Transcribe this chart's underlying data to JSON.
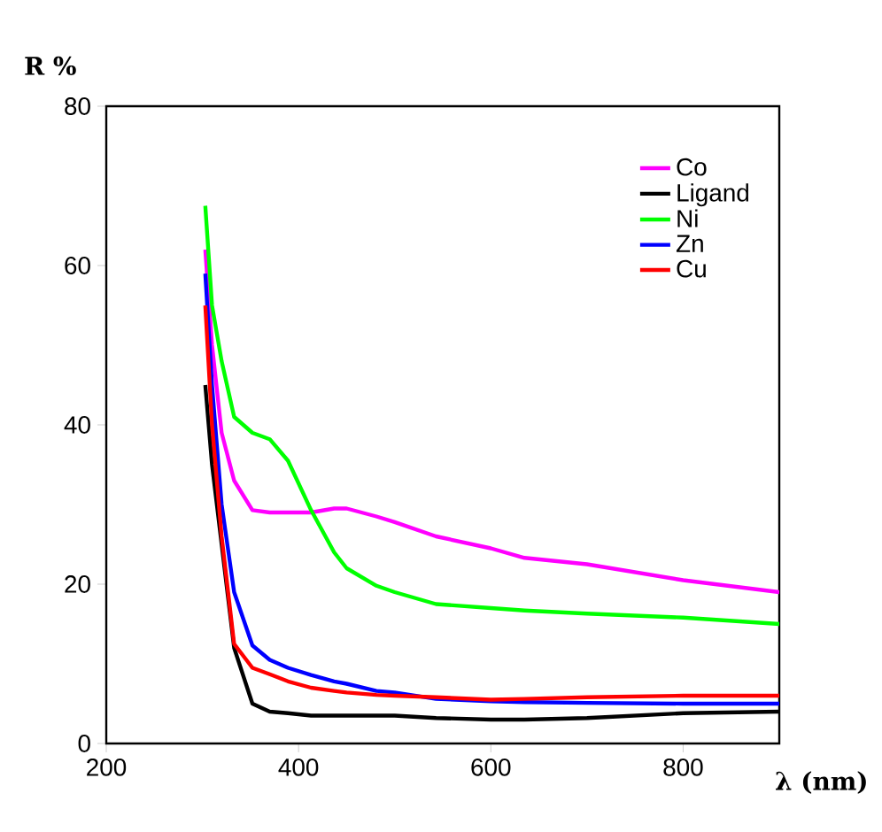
{
  "chart_data": {
    "type": "line",
    "xlabel": "λ (nm)",
    "ylabel": "R %",
    "xlim": [
      200,
      900
    ],
    "ylim": [
      0,
      80
    ],
    "xticks": [
      200,
      400,
      600,
      800
    ],
    "yticks": [
      0,
      20,
      40,
      60,
      80
    ],
    "legend": "top right",
    "grid": false,
    "x": [
      303,
      310,
      320,
      333,
      352,
      370,
      389,
      413,
      437,
      450,
      481,
      500,
      543,
      600,
      635,
      700,
      800,
      900
    ],
    "series": [
      {
        "name": "Co",
        "color": "#ff00ff",
        "values": [
          62,
          50,
          39,
          33,
          29.3,
          29,
          29,
          29,
          29.5,
          29.5,
          28.5,
          27.8,
          26,
          24.5,
          23.3,
          22.5,
          20.5,
          19
        ]
      },
      {
        "name": "Ligand",
        "color": "#000000",
        "values": [
          45,
          35,
          25,
          12,
          5,
          4,
          3.8,
          3.5,
          3.5,
          3.5,
          3.5,
          3.5,
          3.2,
          3,
          3,
          3.2,
          3.8,
          4
        ]
      },
      {
        "name": "Ni",
        "color": "#00ff00",
        "values": [
          67.5,
          55,
          48,
          41,
          39,
          38.2,
          35.5,
          29.3,
          24,
          22,
          19.8,
          19,
          17.5,
          17,
          16.7,
          16.3,
          15.8,
          15
        ]
      },
      {
        "name": "Zn",
        "color": "#0000ff",
        "values": [
          59,
          45,
          30,
          19,
          12.3,
          10.5,
          9.5,
          8.6,
          7.8,
          7.5,
          6.6,
          6.4,
          5.6,
          5.3,
          5.2,
          5.1,
          5,
          5
        ]
      },
      {
        "name": "Cu",
        "color": "#ff0000",
        "values": [
          55,
          40,
          26,
          12.5,
          9.5,
          8.7,
          7.8,
          7,
          6.6,
          6.4,
          6.1,
          6,
          5.8,
          5.5,
          5.6,
          5.8,
          6,
          6
        ]
      }
    ]
  }
}
